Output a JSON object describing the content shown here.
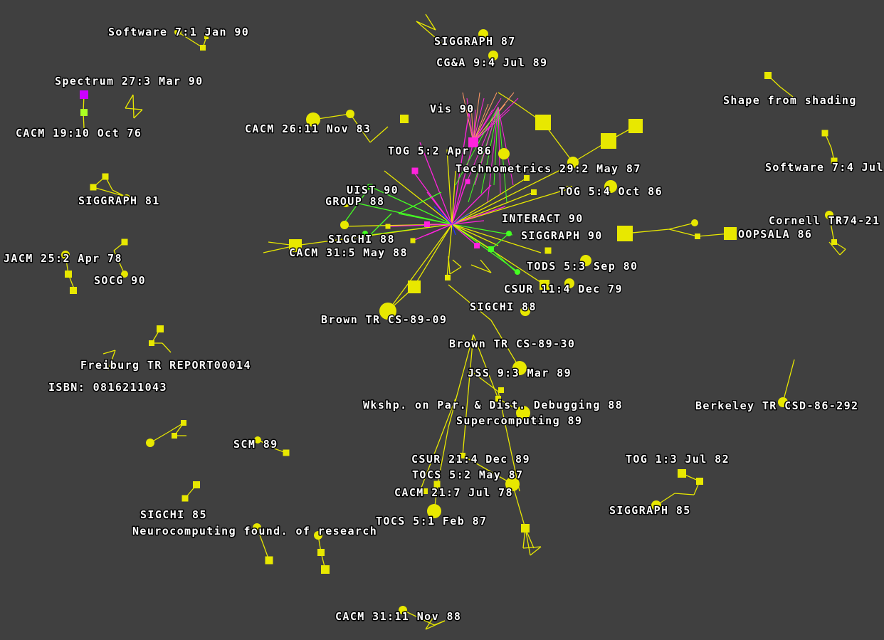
{
  "labels": [
    "Software 7:1 Jan 90",
    "Spectrum 27:3 Mar 90",
    "CACM 19:10 Oct 76",
    "SIGGRAPH 81",
    "JACM 25:2 Apr 78",
    "SOCG 90",
    "Freiburg TR REPORT00014",
    "ISBN: 0816211043",
    "SCM 89",
    "SIGCHI 85",
    "Neurocomputing found. of research",
    "CACM 31:11 Nov 88",
    "SIGGRAPH 87",
    "CG&A 9:4 Jul 89",
    "Vis 90",
    "CACM 26:11 Nov 83",
    "TOG 5:2 Apr 86",
    "Technometrics 29:2 May 87",
    "UIST 90",
    "GROUP 88",
    "TOG 5:4 Oct 86",
    "INTERACT 90",
    "SIGGRAPH 90",
    "SIGCHI 88",
    "CACM 31:5 May 88",
    "TODS 5:3 Sep 80",
    "CSUR 11:4 Dec 79",
    "SIGCHI 88",
    "Brown TR CS-89-09",
    "Brown TR CS-89-30",
    "JSS 9:3 Mar 89",
    "Wkshp. on Par. & Dist. Debugging 88",
    "Supercomputing 89",
    "CSUR 21:4 Dec 89",
    "TOCS 5:2 May 87",
    "CACM 21:7 Jul 78",
    "TOCS 5:1 Feb 87",
    "Shape from shading",
    "Software 7:4 Jul",
    "Cornell TR74-21",
    "OOPSALA 86",
    "Berkeley TR CSD-86-292",
    "TOG 1:3 Jul 82",
    "SIGGRAPH 85"
  ]
}
